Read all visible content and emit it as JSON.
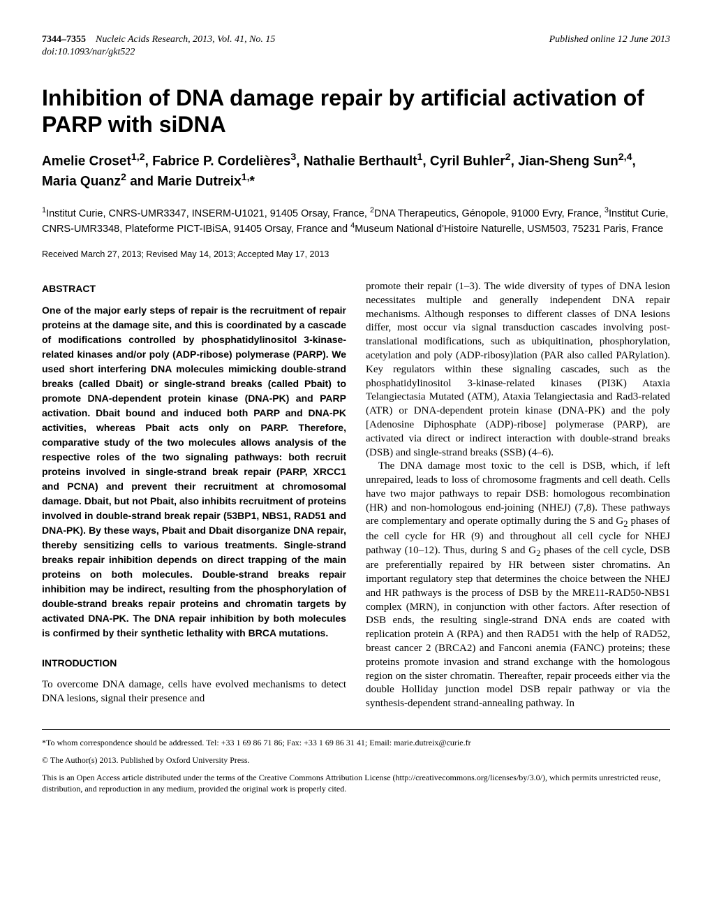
{
  "header": {
    "pages": "7344–7355",
    "journal": "Nucleic Acids Research, 2013, Vol. 41, No. 15",
    "doi": "doi:10.1093/nar/gkt522",
    "published": "Published online 12 June 2013"
  },
  "title": "Inhibition of DNA damage repair by artificial activation of PARP with siDNA",
  "authors_html": "Amelie Croset<sup>1,2</sup>, Fabrice P. Cordelières<sup>3</sup>, Nathalie Berthault<sup>1</sup>, Cyril Buhler<sup>2</sup>, Jian-Sheng Sun<sup>2,4</sup>, Maria Quanz<sup>2</sup> and Marie Dutreix<sup>1,</sup>*",
  "affiliations_html": "<sup>1</sup>Institut Curie, CNRS-UMR3347, INSERM-U1021, 91405 Orsay, France, <sup>2</sup>DNA Therapeutics, Génopole, 91000 Evry, France, <sup>3</sup>Institut Curie, CNRS-UMR3348, Plateforme PICT-IBiSA, 91405 Orsay, France and <sup>4</sup>Museum National d'Histoire Naturelle, USM503, 75231 Paris, France",
  "dates": "Received March 27, 2013; Revised May 14, 2013; Accepted May 17, 2013",
  "abstract_heading": "ABSTRACT",
  "abstract_body": "One of the major early steps of repair is the recruitment of repair proteins at the damage site, and this is coordinated by a cascade of modifications controlled by phosphatidylinositol 3-kinase-related kinases and/or poly (ADP-ribose) polymerase (PARP). We used short interfering DNA molecules mimicking double-strand breaks (called Dbait) or single-strand breaks (called Pbait) to promote DNA-dependent protein kinase (DNA-PK) and PARP activation. Dbait bound and induced both PARP and DNA-PK activities, whereas Pbait acts only on PARP. Therefore, comparative study of the two molecules allows analysis of the respective roles of the two signaling pathways: both recruit proteins involved in single-strand break repair (PARP, XRCC1 and PCNA) and prevent their recruitment at chromosomal damage. Dbait, but not Pbait, also inhibits recruitment of proteins involved in double-strand break repair (53BP1, NBS1, RAD51 and DNA-PK). By these ways, Pbait and Dbait disorganize DNA repair, thereby sensitizing cells to various treatments. Single-strand breaks repair inhibition depends on direct trapping of the main proteins on both molecules. Double-strand breaks repair inhibition may be indirect, resulting from the phosphorylation of double-strand breaks repair proteins and chromatin targets by activated DNA-PK. The DNA repair inhibition by both molecules is confirmed by their synthetic lethality with BRCA mutations.",
  "intro_heading": "INTRODUCTION",
  "intro_left": "To overcome DNA damage, cells have evolved mechanisms to detect DNA lesions, signal their presence and",
  "intro_right_p1": "promote their repair (1–3). The wide diversity of types of DNA lesion necessitates multiple and generally independent DNA repair mechanisms. Although responses to different classes of DNA lesions differ, most occur via signal transduction cascades involving post-translational modifications, such as ubiquitination, phosphorylation, acetylation and poly (ADP-ribosy)lation (PAR also called PARylation). Key regulators within these signaling cascades, such as the phosphatidylinositol 3-kinase-related kinases (PI3K) Ataxia Telangiectasia Mutated (ATM), Ataxia Telangiectasia and Rad3-related (ATR) or DNA-dependent protein kinase (DNA-PK) and the poly [Adenosine Diphosphate (ADP)-ribose] polymerase (PARP), are activated via direct or indirect interaction with double-strand breaks (DSB) and single-strand breaks (SSB) (4–6).",
  "intro_right_p2_html": "The DNA damage most toxic to the cell is DSB, which, if left unrepaired, leads to loss of chromosome fragments and cell death. Cells have two major pathways to repair DSB: homologous recombination (HR) and non-homologous end-joining (NHEJ) (7,8). These pathways are complementary and operate optimally during the S and G<sub>2</sub> phases of the cell cycle for HR (9) and throughout all cell cycle for NHEJ pathway (10–12). Thus, during S and G<sub>2</sub> phases of the cell cycle, DSB are preferentially repaired by HR between sister chromatins. An important regulatory step that determines the choice between the NHEJ and HR pathways is the process of DSB by the MRE11-RAD50-NBS1 complex (MRN), in conjunction with other factors. After resection of DSB ends, the resulting single-strand DNA ends are coated with replication protein A (RPA) and then RAD51 with the help of RAD52, breast cancer 2 (BRCA2) and Fanconi anemia (FANC) proteins; these proteins promote invasion and strand exchange with the homologous region on the sister chromatin. Thereafter, repair proceeds either via the double Holliday junction model DSB repair pathway or via the synthesis-dependent strand-annealing pathway. In",
  "footer": {
    "correspondence": "*To whom correspondence should be addressed. Tel: +33 1 69 86 71 86; Fax: +33 1 69 86 31 41; Email: marie.dutreix@curie.fr",
    "copyright": "© The Author(s) 2013. Published by Oxford University Press.",
    "license": "This is an Open Access article distributed under the terms of the Creative Commons Attribution License (http://creativecommons.org/licenses/by/3.0/), which permits unrestricted reuse, distribution, and reproduction in any medium, provided the original work is properly cited."
  }
}
